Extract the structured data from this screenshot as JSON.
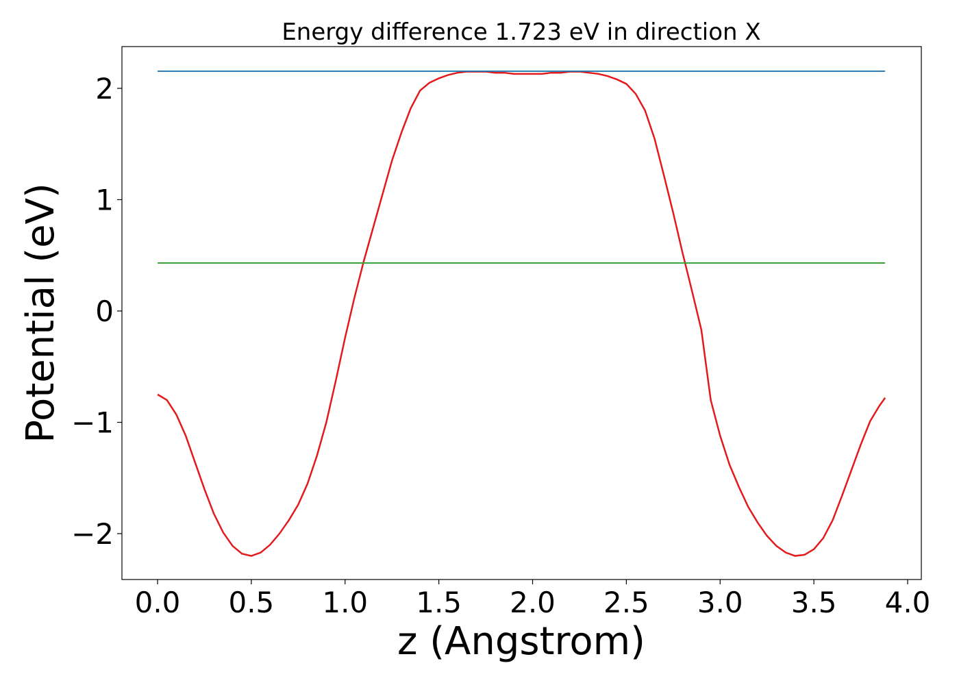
{
  "chart_data": {
    "type": "line",
    "title": "Energy difference 1.723 eV in direction X",
    "xlabel": "z (Angstrom)",
    "ylabel": "Potential (eV)",
    "xlim": [
      -0.19,
      4.073
    ],
    "ylim": [
      -2.412,
      2.375
    ],
    "xticks": [
      {
        "value": 0,
        "label": "0.0"
      },
      {
        "value": 0.5,
        "label": "0.5"
      },
      {
        "value": 1,
        "label": "1.0"
      },
      {
        "value": 1.5,
        "label": "1.5"
      },
      {
        "value": 2,
        "label": "2.0"
      },
      {
        "value": 2.5,
        "label": "2.5"
      },
      {
        "value": 3,
        "label": "3.0"
      },
      {
        "value": 3.5,
        "label": "3.5"
      },
      {
        "value": 4,
        "label": "4.0"
      }
    ],
    "yticks": [
      {
        "value": -2,
        "label": "−2"
      },
      {
        "value": -1,
        "label": "−1"
      },
      0,
      1,
      2
    ],
    "series": [
      {
        "color": "#e31a1c",
        "x": [
          0,
          0.05,
          0.1,
          0.15,
          0.2,
          0.25,
          0.3,
          0.35,
          0.4,
          0.45,
          0.5,
          0.55,
          0.6,
          0.65,
          0.7,
          0.75,
          0.8,
          0.85,
          0.9,
          0.95,
          1,
          1.05,
          1.1,
          1.15,
          1.2,
          1.25,
          1.3,
          1.35,
          1.4,
          1.45,
          1.5,
          1.55,
          1.6,
          1.65,
          1.7,
          1.75,
          1.8,
          1.85,
          1.9,
          1.95,
          2,
          2.05,
          2.1,
          2.15,
          2.2,
          2.25,
          2.3,
          2.35,
          2.4,
          2.45,
          2.5,
          2.55,
          2.6,
          2.65,
          2.7,
          2.75,
          2.8,
          2.85,
          2.9,
          2.95,
          3,
          3.05,
          3.1,
          3.15,
          3.2,
          3.25,
          3.3,
          3.35,
          3.4,
          3.45,
          3.5,
          3.55,
          3.6,
          3.65,
          3.7,
          3.75,
          3.8,
          3.85,
          3.88
        ],
        "values": [
          -0.75,
          -0.8,
          -0.93,
          -1.12,
          -1.36,
          -1.6,
          -1.82,
          -1.99,
          -2.11,
          -2.18,
          -2.2,
          -2.17,
          -2.1,
          -2.0,
          -1.88,
          -1.74,
          -1.55,
          -1.3,
          -1.0,
          -0.63,
          -0.24,
          0.12,
          0.45,
          0.75,
          1.05,
          1.35,
          1.6,
          1.82,
          1.98,
          2.05,
          2.09,
          2.12,
          2.14,
          2.15,
          2.15,
          2.15,
          2.14,
          2.14,
          2.13,
          2.13,
          2.13,
          2.13,
          2.14,
          2.14,
          2.15,
          2.15,
          2.14,
          2.13,
          2.11,
          2.08,
          2.04,
          1.95,
          1.8,
          1.55,
          1.22,
          0.88,
          0.52,
          0.18,
          -0.17,
          -0.8,
          -1.12,
          -1.38,
          -1.58,
          -1.76,
          -1.9,
          -2.02,
          -2.11,
          -2.17,
          -2.2,
          -2.19,
          -2.14,
          -2.04,
          -1.88,
          -1.66,
          -1.43,
          -1.2,
          -0.99,
          -0.85,
          -0.78
        ]
      },
      {
        "color": "#1f77b4",
        "x": [
          0,
          3.88
        ],
        "values": [
          2.154,
          2.154
        ]
      },
      {
        "color": "#2ca02c",
        "x": [
          0,
          3.88
        ],
        "values": [
          0.431,
          0.431
        ]
      }
    ]
  }
}
